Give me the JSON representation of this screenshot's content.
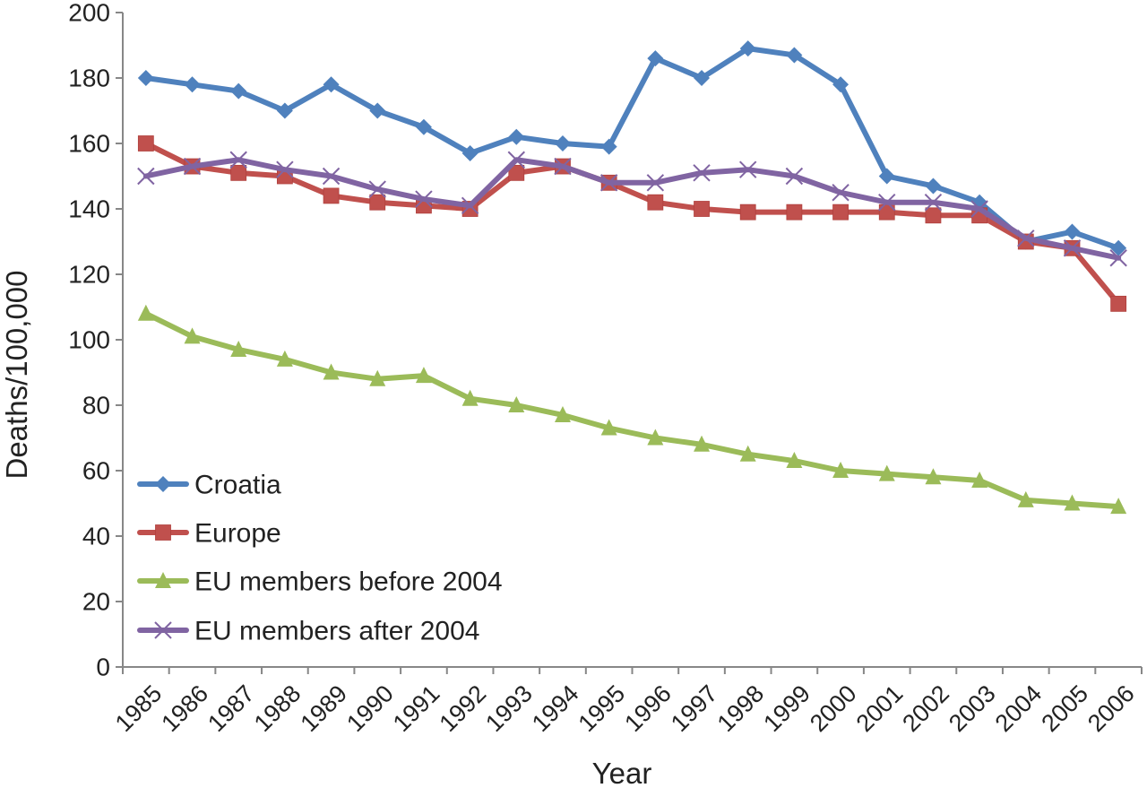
{
  "chart_data": {
    "type": "line",
    "title": "",
    "xlabel": "Year",
    "ylabel": "Deaths/100,000",
    "ylim": [
      0,
      200
    ],
    "yticks": [
      0,
      20,
      40,
      60,
      80,
      100,
      120,
      140,
      160,
      180,
      200
    ],
    "grid": false,
    "legend_position": "bottom-left",
    "categories": [
      "1985",
      "1986",
      "1987",
      "1988",
      "1989",
      "1990",
      "1991",
      "1992",
      "1993",
      "1994",
      "1995",
      "1996",
      "1997",
      "1998",
      "1999",
      "2000",
      "2001",
      "2002",
      "2003",
      "2004",
      "2005",
      "2006"
    ],
    "series": [
      {
        "name": "Croatia",
        "color": "#4F81BD",
        "marker": "diamond",
        "values": [
          180,
          178,
          176,
          170,
          178,
          170,
          165,
          157,
          162,
          160,
          159,
          186,
          180,
          189,
          187,
          178,
          150,
          147,
          142,
          130,
          133,
          128
        ]
      },
      {
        "name": "Europe",
        "color": "#C0504D",
        "marker": "square",
        "values": [
          160,
          153,
          151,
          150,
          144,
          142,
          141,
          140,
          151,
          153,
          148,
          142,
          140,
          139,
          139,
          139,
          139,
          138,
          138,
          130,
          128,
          111
        ]
      },
      {
        "name": "EU members before 2004",
        "color": "#9BBB59",
        "marker": "triangle",
        "values": [
          108,
          101,
          97,
          94,
          90,
          88,
          89,
          82,
          80,
          77,
          73,
          70,
          68,
          65,
          63,
          60,
          59,
          58,
          57,
          51,
          50,
          49
        ]
      },
      {
        "name": "EU members after 2004",
        "color": "#8064A2",
        "marker": "x",
        "values": [
          150,
          153,
          155,
          152,
          150,
          146,
          143,
          141,
          155,
          153,
          148,
          148,
          151,
          152,
          150,
          145,
          142,
          142,
          140,
          131,
          128,
          125
        ]
      }
    ]
  }
}
